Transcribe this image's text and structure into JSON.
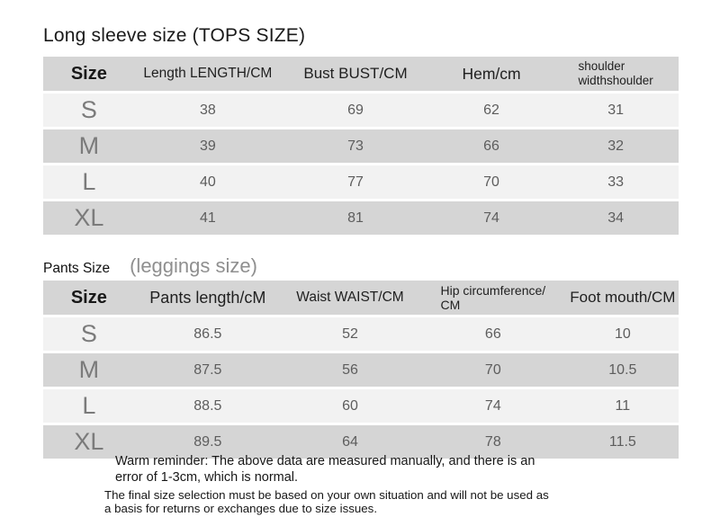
{
  "colors": {
    "page_background": "#ffffff",
    "header_row_bg": "#d5d5d5",
    "even_row_bg": "#d5d5d5",
    "odd_row_bg": "#f2f2f2",
    "header_text": "#1f1f1f",
    "data_text": "#5d5d5d",
    "size_letter_text": "#7b7b7b",
    "subtitle_gray": "#8f8f8f"
  },
  "tops": {
    "title": "Long sleeve size (TOPS SIZE)",
    "table": {
      "headers": [
        "Size",
        "Length LENGTH/CM",
        "Bust BUST/CM",
        "Hem/cm",
        "shoulder\nwidthshoulder"
      ],
      "rows": [
        [
          "S",
          "38",
          "69",
          "62",
          "31"
        ],
        [
          "M",
          "39",
          "73",
          "66",
          "32"
        ],
        [
          "L",
          "40",
          "77",
          "70",
          "33"
        ],
        [
          "XL",
          "41",
          "81",
          "74",
          "34"
        ]
      ]
    }
  },
  "pants": {
    "title": "Pants Size",
    "subtitle": "(leggings size)",
    "table": {
      "headers": [
        "Size",
        "Pants length/cM",
        "Waist WAIST/CM",
        "Hip circumference/\nCM",
        "Foot mouth/CM"
      ],
      "rows": [
        [
          "S",
          "86.5",
          "52",
          "66",
          "10"
        ],
        [
          "M",
          "87.5",
          "56",
          "70",
          "10.5"
        ],
        [
          "L",
          "88.5",
          "60",
          "74",
          "11"
        ],
        [
          "XL",
          "89.5",
          "64",
          "78",
          "11.5"
        ]
      ]
    }
  },
  "reminder": {
    "line1": "Warm reminder: The above data are measured manually, and there is an\nerror of 1-3cm, which is normal.",
    "line2": "The final size selection must be based on your own situation and will not be used as\na basis for returns or exchanges due to size issues."
  }
}
